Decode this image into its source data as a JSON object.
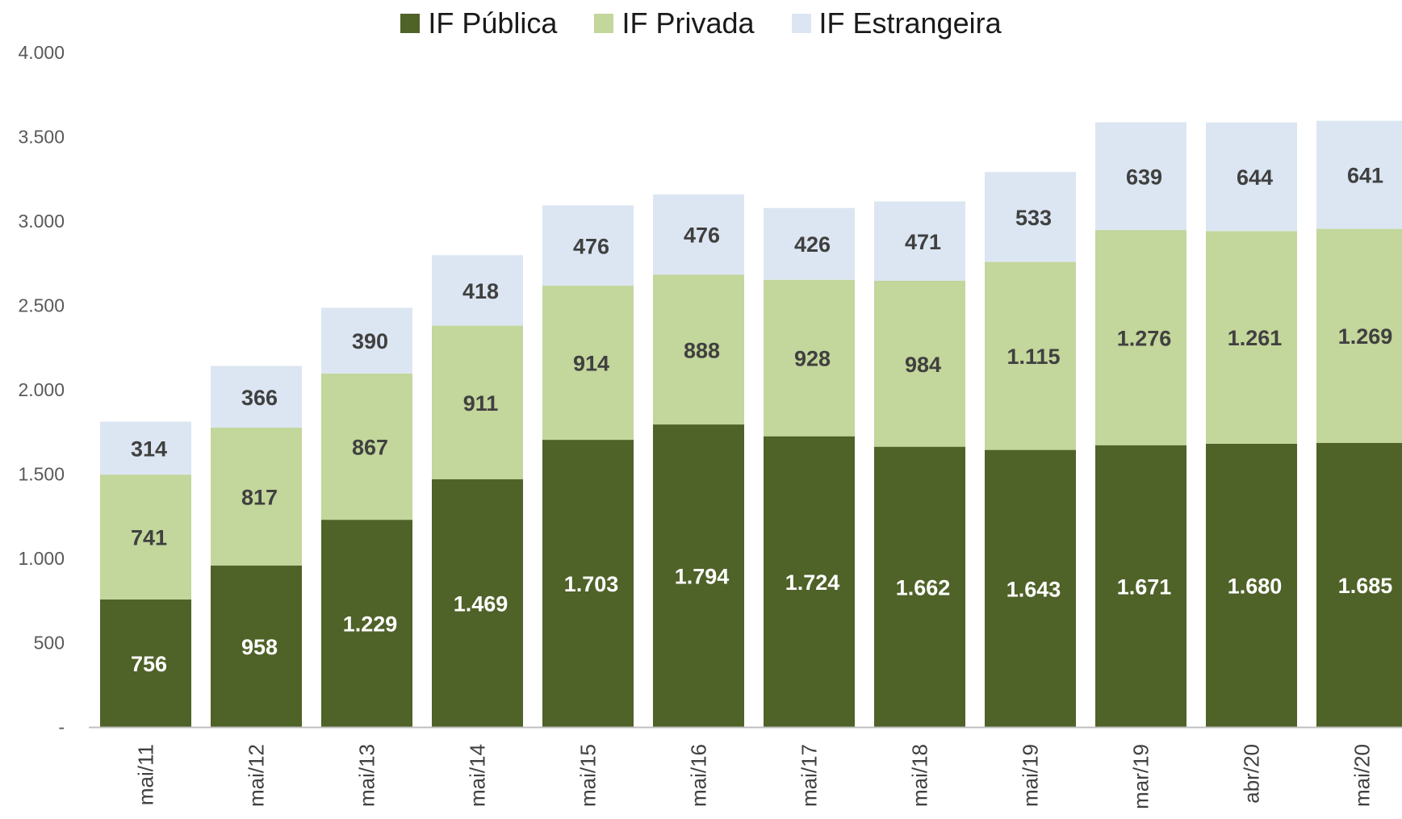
{
  "chart_data": {
    "type": "bar",
    "stacked": true,
    "title": "",
    "xlabel": "",
    "ylabel": "",
    "categories": [
      "mai/11",
      "mai/12",
      "mai/13",
      "mai/14",
      "mai/15",
      "mai/16",
      "mai/17",
      "mai/18",
      "mai/19",
      "mar/19",
      "abr/20",
      "mai/20"
    ],
    "series": [
      {
        "name": "IF Pública",
        "color": "#4f6228",
        "label_color": "#ffffff",
        "values": [
          756,
          958,
          1229,
          1469,
          1703,
          1794,
          1724,
          1662,
          1643,
          1671,
          1680,
          1685
        ],
        "labels": [
          "756",
          "958",
          "1.229",
          "1.469",
          "1.703",
          "1.794",
          "1.724",
          "1.662",
          "1.643",
          "1.671",
          "1.680",
          "1.685"
        ]
      },
      {
        "name": "IF Privada",
        "color": "#c3d69b",
        "label_color": "#404040",
        "values": [
          741,
          817,
          867,
          911,
          914,
          888,
          928,
          984,
          1115,
          1276,
          1261,
          1269
        ],
        "labels": [
          "741",
          "817",
          "867",
          "911",
          "914",
          "888",
          "928",
          "984",
          "1.115",
          "1.276",
          "1.261",
          "1.269"
        ]
      },
      {
        "name": "IF Estrangeira",
        "color": "#dce6f2",
        "label_color": "#404040",
        "values": [
          314,
          366,
          390,
          418,
          476,
          476,
          426,
          471,
          533,
          639,
          644,
          641
        ],
        "labels": [
          "314",
          "366",
          "390",
          "418",
          "476",
          "476",
          "426",
          "471",
          "533",
          "639",
          "644",
          "641"
        ]
      }
    ],
    "ylim": [
      0,
      4000
    ],
    "yticks": [
      0,
      500,
      1000,
      1500,
      2000,
      2500,
      3000,
      3500,
      4000
    ],
    "ytick_labels": [
      "-",
      "500",
      "1.000",
      "1.500",
      "2.000",
      "2.500",
      "3.000",
      "3.500",
      "4.000"
    ],
    "grid": false,
    "legend_position": "top-center"
  }
}
